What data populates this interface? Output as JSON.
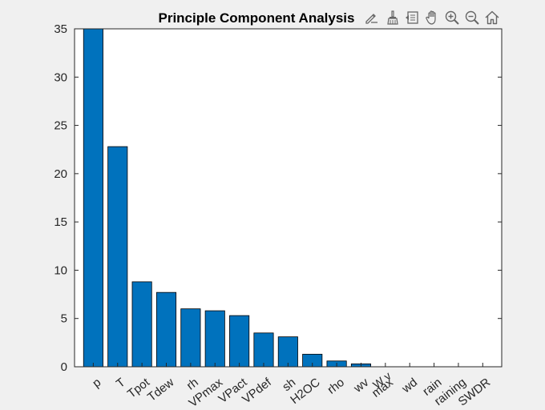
{
  "chart_data": {
    "type": "bar",
    "title": "Principle Component Analysis",
    "xlabel": "",
    "ylabel": "",
    "categories": [
      "p",
      "T",
      "Tpot",
      "Tdew",
      "rh",
      "VPmax",
      "VPact",
      "VPdef",
      "sh",
      "H2OC",
      "rho",
      "wv",
      "max. wv",
      "wd",
      "rain",
      "raining",
      "SWDR"
    ],
    "category_labels": [
      "p",
      "T",
      "Tpot",
      "Tdew",
      "rh",
      "VPmax",
      "VPact",
      "VPdef",
      "sh",
      "H2OC",
      "rho",
      "wv",
      "max",
      "wd",
      "rain",
      "raining",
      "SWDR"
    ],
    "values": [
      35.0,
      22.8,
      8.8,
      7.7,
      6.0,
      5.8,
      5.3,
      3.5,
      3.1,
      1.3,
      0.6,
      0.3,
      0.0,
      0.0,
      0.0,
      0.0,
      0.0
    ],
    "ylim": [
      0,
      35
    ],
    "yticks": [
      0,
      5,
      10,
      15,
      20,
      25,
      30,
      35
    ],
    "bar_color": "#0072bd",
    "grid": false,
    "overflow_label": "W v"
  },
  "toolbar": {
    "buttons": [
      {
        "name": "edit-plot-icon"
      },
      {
        "name": "brush-icon"
      },
      {
        "name": "data-tips-icon"
      },
      {
        "name": "pan-hand-icon"
      },
      {
        "name": "zoom-in-icon"
      },
      {
        "name": "zoom-out-icon"
      },
      {
        "name": "home-icon"
      }
    ]
  },
  "colors": {
    "figure_bg": "#f0f0f0",
    "axes_bg": "#ffffff",
    "axis": "#262626",
    "bar": "#0072bd"
  }
}
